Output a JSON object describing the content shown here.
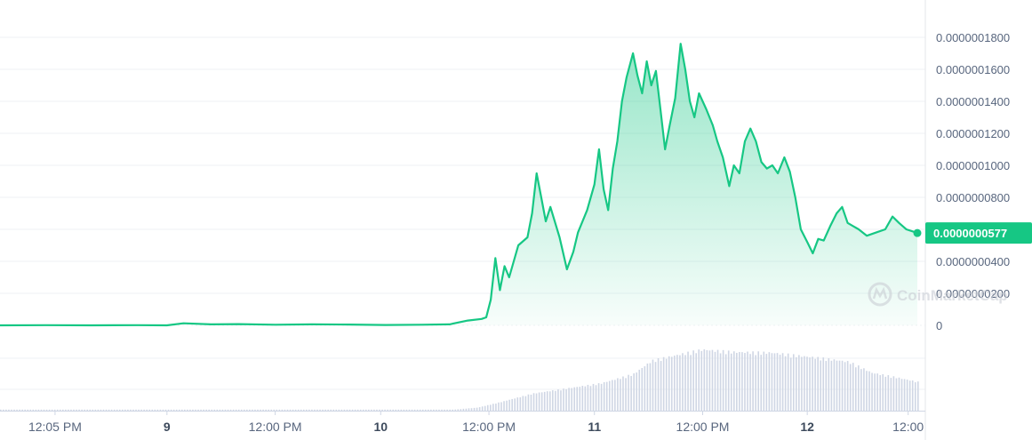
{
  "chart_data": {
    "type": "area",
    "title": "",
    "xlabel": "",
    "ylabel": "",
    "ylim": [
      0,
      1.9e-07
    ],
    "grid": true,
    "y_ticks": [
      "0",
      "0.0000000200",
      "0.0000000400",
      "0.0000000600",
      "0.0000000800",
      "0.0000001000",
      "0.0000001200",
      "0.0000001400",
      "0.0000001600",
      "0.0000001800"
    ],
    "y_tick_values": [
      0,
      2e-08,
      4e-08,
      6e-08,
      8e-08,
      1e-07,
      1.2e-07,
      1.4e-07,
      1.6e-07,
      1.8e-07
    ],
    "x_ticks": [
      {
        "label": "12:05 PM",
        "day": false,
        "t": 0.06
      },
      {
        "label": "9",
        "day": true,
        "t": 0.182
      },
      {
        "label": "12:00 PM",
        "day": false,
        "t": 0.3
      },
      {
        "label": "10",
        "day": true,
        "t": 0.415
      },
      {
        "label": "12:00 PM",
        "day": false,
        "t": 0.533
      },
      {
        "label": "11",
        "day": true,
        "t": 0.648
      },
      {
        "label": "12:00 PM",
        "day": false,
        "t": 0.766
      },
      {
        "label": "12",
        "day": true,
        "t": 0.88
      },
      {
        "label": "12:00",
        "day": false,
        "t": 0.99
      }
    ],
    "current_price": "0.0000000577",
    "current_value": 5.77e-08,
    "colors": {
      "line": "#16c784",
      "area_top": "#16c784",
      "volume": "#cfd6e4",
      "price_label": "#16c784"
    },
    "series": [
      {
        "points": [
          [
            0.0,
            0.0
          ],
          [
            0.05,
            1e-10
          ],
          [
            0.1,
            0.0
          ],
          [
            0.15,
            1e-10
          ],
          [
            0.182,
            0.0
          ],
          [
            0.2,
            1.3e-09
          ],
          [
            0.23,
            6e-10
          ],
          [
            0.26,
            8e-10
          ],
          [
            0.3,
            4e-10
          ],
          [
            0.34,
            6e-10
          ],
          [
            0.38,
            5e-10
          ],
          [
            0.42,
            2e-10
          ],
          [
            0.46,
            4e-10
          ],
          [
            0.49,
            6e-10
          ],
          [
            0.51,
            3e-09
          ],
          [
            0.525,
            4e-09
          ],
          [
            0.53,
            5e-09
          ],
          [
            0.535,
            1.6e-08
          ],
          [
            0.54,
            4.2e-08
          ],
          [
            0.545,
            2.2e-08
          ],
          [
            0.55,
            3.7e-08
          ],
          [
            0.555,
            3e-08
          ],
          [
            0.565,
            5e-08
          ],
          [
            0.575,
            5.5e-08
          ],
          [
            0.58,
            7e-08
          ],
          [
            0.585,
            9.5e-08
          ],
          [
            0.59,
            8e-08
          ],
          [
            0.595,
            6.5e-08
          ],
          [
            0.6,
            7.4e-08
          ],
          [
            0.61,
            5.5e-08
          ],
          [
            0.618,
            3.5e-08
          ],
          [
            0.625,
            4.6e-08
          ],
          [
            0.63,
            5.8e-08
          ],
          [
            0.64,
            7.2e-08
          ],
          [
            0.648,
            8.8e-08
          ],
          [
            0.653,
            1.1e-07
          ],
          [
            0.658,
            8.5e-08
          ],
          [
            0.663,
            7.2e-08
          ],
          [
            0.668,
            9.8e-08
          ],
          [
            0.673,
            1.15e-07
          ],
          [
            0.678,
            1.4e-07
          ],
          [
            0.683,
            1.55e-07
          ],
          [
            0.69,
            1.7e-07
          ],
          [
            0.695,
            1.56e-07
          ],
          [
            0.7,
            1.45e-07
          ],
          [
            0.705,
            1.65e-07
          ],
          [
            0.71,
            1.5e-07
          ],
          [
            0.715,
            1.59e-07
          ],
          [
            0.72,
            1.35e-07
          ],
          [
            0.725,
            1.1e-07
          ],
          [
            0.73,
            1.25e-07
          ],
          [
            0.736,
            1.42e-07
          ],
          [
            0.742,
            1.76e-07
          ],
          [
            0.747,
            1.6e-07
          ],
          [
            0.752,
            1.4e-07
          ],
          [
            0.757,
            1.3e-07
          ],
          [
            0.762,
            1.45e-07
          ],
          [
            0.77,
            1.35e-07
          ],
          [
            0.777,
            1.25e-07
          ],
          [
            0.782,
            1.15e-07
          ],
          [
            0.788,
            1.05e-07
          ],
          [
            0.795,
            8.7e-08
          ],
          [
            0.8,
            1e-07
          ],
          [
            0.806,
            9.5e-08
          ],
          [
            0.812,
            1.15e-07
          ],
          [
            0.818,
            1.23e-07
          ],
          [
            0.824,
            1.15e-07
          ],
          [
            0.83,
            1.02e-07
          ],
          [
            0.836,
            9.8e-08
          ],
          [
            0.842,
            1e-07
          ],
          [
            0.848,
            9.5e-08
          ],
          [
            0.855,
            1.05e-07
          ],
          [
            0.861,
            9.6e-08
          ],
          [
            0.867,
            8e-08
          ],
          [
            0.873,
            6e-08
          ],
          [
            0.88,
            5.2e-08
          ],
          [
            0.886,
            4.5e-08
          ],
          [
            0.892,
            5.4e-08
          ],
          [
            0.898,
            5.3e-08
          ],
          [
            0.905,
            6.2e-08
          ],
          [
            0.912,
            7e-08
          ],
          [
            0.918,
            7.4e-08
          ],
          [
            0.924,
            6.4e-08
          ],
          [
            0.93,
            6.2e-08
          ],
          [
            0.936,
            6e-08
          ],
          [
            0.945,
            5.6e-08
          ],
          [
            0.955,
            5.8e-08
          ],
          [
            0.965,
            6e-08
          ],
          [
            0.973,
            6.8e-08
          ],
          [
            0.98,
            6.4e-08
          ],
          [
            0.988,
            6e-08
          ],
          [
            1.0,
            5.77e-08
          ]
        ]
      }
    ],
    "volume_profile": [
      [
        0.0,
        0.0
      ],
      [
        0.48,
        0.0
      ],
      [
        0.52,
        0.05
      ],
      [
        0.545,
        0.14
      ],
      [
        0.58,
        0.28
      ],
      [
        0.62,
        0.37
      ],
      [
        0.655,
        0.45
      ],
      [
        0.69,
        0.6
      ],
      [
        0.71,
        0.82
      ],
      [
        0.74,
        0.92
      ],
      [
        0.765,
        1.0
      ],
      [
        0.8,
        0.96
      ],
      [
        0.84,
        0.95
      ],
      [
        0.87,
        0.9
      ],
      [
        0.9,
        0.85
      ],
      [
        0.925,
        0.8
      ],
      [
        0.95,
        0.62
      ],
      [
        0.975,
        0.55
      ],
      [
        1.0,
        0.47
      ]
    ],
    "watermark": "CoinMarketCap"
  }
}
